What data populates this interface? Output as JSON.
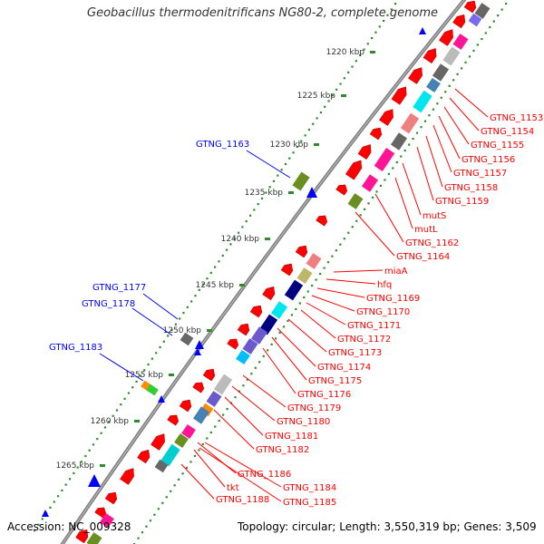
{
  "title": "Geobacillus thermodenitrificans NG80-2, complete genome",
  "footer": {
    "accession": "Accession: NC_009328",
    "summary": "Topology: circular; Length: 3,550,319 bp; Genes: 3,509"
  },
  "colors": {
    "forward_arrow": "#ff0000",
    "reverse_arrow": "#0000ff",
    "backbone": "#808080",
    "tick_dots": "#2e8b2e",
    "label_right": "#ff0000",
    "label_left": "#0000ff"
  },
  "ruler": [
    {
      "label": "1220 kbp",
      "pos": 1220
    },
    {
      "label": "1225 kbp",
      "pos": 1225
    },
    {
      "label": "1230 kbp",
      "pos": 1230
    },
    {
      "label": "1235 kbp",
      "pos": 1235
    },
    {
      "label": "1240 kbp",
      "pos": 1240
    },
    {
      "label": "1245 kbp",
      "pos": 1245
    },
    {
      "label": "1250 kbp",
      "pos": 1250
    },
    {
      "label": "1255 kbp",
      "pos": 1255
    },
    {
      "label": "1260 kbp",
      "pos": 1260
    },
    {
      "label": "1265 kbp",
      "pos": 1265
    }
  ],
  "genes_right": [
    "GTNG_1153",
    "GTNG_1154",
    "GTNG_1155",
    "GTNG_1156",
    "GTNG_1157",
    "GTNG_1158",
    "GTNG_1159",
    "mutS",
    "mutL",
    "GTNG_1162",
    "GTNG_1164",
    "miaA",
    "hfq",
    "GTNG_1169",
    "GTNG_1170",
    "GTNG_1171",
    "GTNG_1172",
    "GTNG_1173",
    "GTNG_1174",
    "GTNG_1175",
    "GTNG_1176",
    "GTNG_1179",
    "GTNG_1180",
    "GTNG_1181",
    "GTNG_1182",
    "GTNG_1186",
    "GTNG_1184",
    "tkt",
    "GTNG_1185",
    "GTNG_1188"
  ],
  "genes_left": [
    "GTNG_1163",
    "GTNG_1177",
    "GTNG_1178",
    "GTNG_1183"
  ]
}
